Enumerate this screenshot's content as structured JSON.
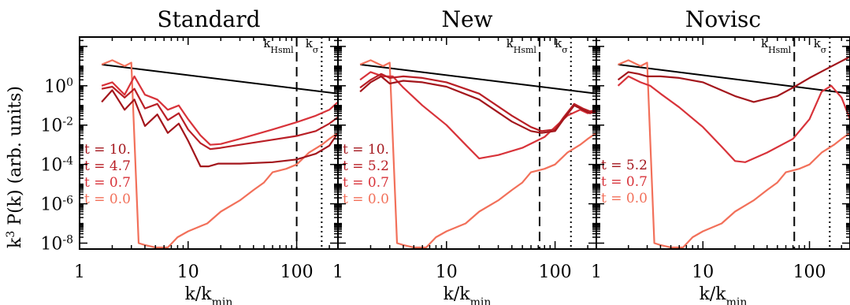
{
  "figure": {
    "ylabel": "k",
    "ylabel_sup": "3",
    "ylabel_rest": " P(k)  (arb. units)"
  },
  "colors": {
    "t10": "#a3161c",
    "t47": "#b91f26",
    "t07": "#d8333a",
    "t00": "#f2705a",
    "axis": "#000000",
    "guide": "#000000"
  },
  "chart_data": [
    {
      "type": "line",
      "title": "Standard",
      "xlabel": "k/k",
      "xlabel_sub": "min",
      "xscale": "log",
      "yscale": "log",
      "xlim": [
        1,
        240
      ],
      "ylim": [
        5e-09,
        300
      ],
      "x_ticks": [
        1,
        10,
        100
      ],
      "y_ticks": [
        {
          "v": 1,
          "mant": "10",
          "exp": "0"
        },
        {
          "v": 0.01,
          "mant": "10",
          "exp": "-2"
        },
        {
          "v": 0.0001,
          "mant": "10",
          "exp": "-4"
        },
        {
          "v": 1e-06,
          "mant": "10",
          "exp": "-6"
        },
        {
          "v": 1e-08,
          "mant": "10",
          "exp": "-8"
        }
      ],
      "show_yticklabels": true,
      "vlines": [
        {
          "x": 100,
          "style": "dashed",
          "label": "k",
          "sub": "Hsml"
        },
        {
          "x": 170,
          "style": "dotted",
          "label": "k",
          "sub": "σ"
        }
      ],
      "reference_line": {
        "x": [
          1.6,
          240
        ],
        "y": [
          12,
          0.4
        ]
      },
      "legend": [
        "t = 10.",
        "t = 4.7",
        "t = 0.7",
        "t = 0.0"
      ],
      "series": [
        {
          "name": "t = 10.",
          "color_key": "t10",
          "x": [
            1.6,
            2.0,
            2.6,
            3.2,
            4.0,
            5.2,
            6.5,
            8.2,
            10,
            13,
            15.5,
            19,
            30,
            60,
            100,
            150,
            200,
            240
          ],
          "y": [
            0.15,
            0.6,
            0.06,
            0.2,
            0.009,
            0.035,
            0.004,
            0.012,
            0.0016,
            8e-05,
            8e-05,
            0.00011,
            0.00011,
            0.00013,
            0.00018,
            0.00035,
            0.0009,
            0.004
          ]
        },
        {
          "name": "t = 4.7",
          "color_key": "t47",
          "x": [
            1.6,
            2.0,
            2.6,
            3.2,
            4.0,
            5.2,
            6.5,
            8.2,
            10,
            13,
            16,
            20,
            30,
            60,
            100,
            150,
            200,
            240
          ],
          "y": [
            0.7,
            0.9,
            0.25,
            0.7,
            0.07,
            0.12,
            0.018,
            0.04,
            0.006,
            0.0012,
            0.0006,
            0.0007,
            0.001,
            0.0018,
            0.0028,
            0.005,
            0.012,
            0.025
          ]
        },
        {
          "name": "t = 0.7",
          "color_key": "t07",
          "x": [
            1.6,
            2.0,
            2.6,
            3.2,
            4.0,
            5.2,
            6.5,
            8.2,
            10,
            13,
            16,
            20,
            30,
            60,
            100,
            150,
            200,
            240
          ],
          "y": [
            1.0,
            1.5,
            0.35,
            3,
            0.35,
            0.2,
            0.06,
            0.1,
            0.02,
            0.003,
            0.001,
            0.0011,
            0.002,
            0.006,
            0.014,
            0.03,
            0.06,
            0.15
          ]
        },
        {
          "name": "t = 0.0",
          "color_key": "t00",
          "x": [
            1.6,
            2.0,
            2.6,
            3.0,
            3.5,
            4.0,
            5.0,
            6.5,
            8,
            10,
            15,
            20,
            30,
            40,
            50,
            60,
            80,
            100,
            130,
            170,
            200,
            240
          ],
          "y": [
            12,
            20,
            10,
            15,
            1e-08,
            8e-09,
            6e-09,
            6e-09,
            2e-08,
            4e-08,
            1e-07,
            4e-07,
            1.5e-06,
            5e-06,
            1.2e-05,
            4e-05,
            6e-05,
            0.0001,
            0.0004,
            0.001,
            0.002,
            0.004
          ]
        }
      ]
    },
    {
      "type": "line",
      "title": "New",
      "xlabel": "k/k",
      "xlabel_sub": "min",
      "xscale": "log",
      "yscale": "log",
      "xlim": [
        1,
        240
      ],
      "ylim": [
        5e-09,
        300
      ],
      "x_ticks": [
        1,
        10,
        100
      ],
      "y_ticks": [
        {
          "v": 1
        },
        {
          "v": 0.01
        },
        {
          "v": 0.0001
        },
        {
          "v": 1e-06
        },
        {
          "v": 1e-08
        }
      ],
      "show_yticklabels": false,
      "vlines": [
        {
          "x": 72,
          "style": "dashed",
          "label": "k",
          "sub": "Hsml"
        },
        {
          "x": 140,
          "style": "dotted",
          "label": "k",
          "sub": "σ"
        }
      ],
      "reference_line": {
        "x": [
          1.6,
          240
        ],
        "y": [
          12,
          0.4
        ]
      },
      "legend": [
        "t = 10.",
        "t = 5.2",
        "t = 0.7",
        "t = 0.0"
      ],
      "series": [
        {
          "name": "t = 10.",
          "color_key": "t10",
          "x": [
            1.6,
            2.0,
            2.5,
            3.0,
            4,
            6,
            10,
            20,
            40,
            60,
            75,
            100,
            120,
            150,
            180,
            210,
            240
          ],
          "y": [
            0.5,
            1.5,
            3,
            1.3,
            1.8,
            1.5,
            0.9,
            0.2,
            0.015,
            0.005,
            0.004,
            0.005,
            0.02,
            0.1,
            0.06,
            0.04,
            0.05
          ]
        },
        {
          "name": "t = 5.2",
          "color_key": "t47",
          "x": [
            1.6,
            2.0,
            2.5,
            3.0,
            4,
            6,
            10,
            20,
            40,
            60,
            75,
            100,
            120,
            150,
            180,
            210,
            240
          ],
          "y": [
            0.8,
            2,
            4,
            2.5,
            3,
            2.5,
            1.5,
            0.4,
            0.03,
            0.008,
            0.005,
            0.006,
            0.025,
            0.12,
            0.07,
            0.05,
            0.06
          ]
        },
        {
          "name": "t = 0.7",
          "color_key": "t07",
          "x": [
            1.6,
            2.0,
            2.6,
            3.2,
            4,
            6,
            10,
            15,
            20,
            30,
            50,
            80,
            100,
            130,
            170,
            200,
            240
          ],
          "y": [
            2,
            5,
            3,
            3,
            0.8,
            0.1,
            0.01,
            0.001,
            0.0002,
            0.0003,
            0.0007,
            0.0025,
            0.008,
            0.03,
            0.06,
            0.04,
            0.05
          ]
        },
        {
          "name": "t = 0.0",
          "color_key": "t00",
          "x": [
            1.6,
            2.0,
            2.6,
            3.0,
            3.5,
            4.0,
            5.0,
            6.5,
            8,
            10,
            15,
            20,
            30,
            40,
            50,
            60,
            80,
            100,
            130,
            170,
            200,
            240
          ],
          "y": [
            12,
            20,
            10,
            15,
            1e-08,
            8e-09,
            6e-09,
            6e-09,
            2e-08,
            4e-08,
            1e-07,
            4e-07,
            1.5e-06,
            5e-06,
            1.2e-05,
            4e-05,
            6e-05,
            0.0001,
            0.0004,
            0.001,
            0.002,
            0.004
          ]
        }
      ]
    },
    {
      "type": "line",
      "title": "Novisc",
      "xlabel": "k/k",
      "xlabel_sub": "min",
      "xscale": "log",
      "yscale": "log",
      "xlim": [
        1,
        240
      ],
      "ylim": [
        5e-09,
        300
      ],
      "x_ticks": [
        1,
        10,
        100
      ],
      "y_ticks": [
        {
          "v": 1
        },
        {
          "v": 0.01
        },
        {
          "v": 0.0001
        },
        {
          "v": 1e-06
        },
        {
          "v": 1e-08
        }
      ],
      "show_yticklabels": false,
      "vlines": [
        {
          "x": 72,
          "style": "dashed",
          "label": "k",
          "sub": "Hsml"
        },
        {
          "x": 155,
          "style": "dotted",
          "label": "k",
          "sub": "σ"
        }
      ],
      "reference_line": {
        "x": [
          1.6,
          240
        ],
        "y": [
          12,
          0.4
        ]
      },
      "legend": [
        "t = 5.2",
        "t = 0.7",
        "t = 0.0"
      ],
      "series": [
        {
          "name": "t = 5.2",
          "color_key": "t10",
          "x": [
            1.6,
            2.0,
            2.5,
            3.0,
            4,
            6,
            10,
            20,
            30,
            50,
            70,
            100,
            150,
            240
          ],
          "y": [
            2,
            5,
            4,
            3,
            3,
            2.5,
            1.5,
            0.3,
            0.15,
            0.3,
            0.8,
            2.5,
            8,
            30
          ]
        },
        {
          "name": "t = 0.7",
          "color_key": "t07",
          "x": [
            1.6,
            2.0,
            2.6,
            3.2,
            4,
            6,
            10,
            15,
            20,
            25,
            40,
            70,
            100,
            130,
            160,
            200,
            240
          ],
          "y": [
            1,
            3,
            1.5,
            1,
            0.4,
            0.08,
            0.008,
            0.0008,
            0.00015,
            0.00013,
            0.0004,
            0.002,
            0.02,
            0.5,
            1,
            0.25,
            0.02
          ]
        },
        {
          "name": "t = 0.0",
          "color_key": "t00",
          "x": [
            1.6,
            2.0,
            2.6,
            3.0,
            3.5,
            4.0,
            5.0,
            6.5,
            8,
            10,
            15,
            20,
            30,
            40,
            50,
            60,
            80,
            100,
            130,
            170,
            200,
            240
          ],
          "y": [
            12,
            20,
            10,
            15,
            1e-08,
            8e-09,
            6e-09,
            6e-09,
            2e-08,
            4e-08,
            1e-07,
            4e-07,
            1.5e-06,
            5e-06,
            1.2e-05,
            4e-05,
            6e-05,
            0.0001,
            0.0004,
            0.001,
            0.002,
            0.004
          ]
        }
      ]
    }
  ]
}
